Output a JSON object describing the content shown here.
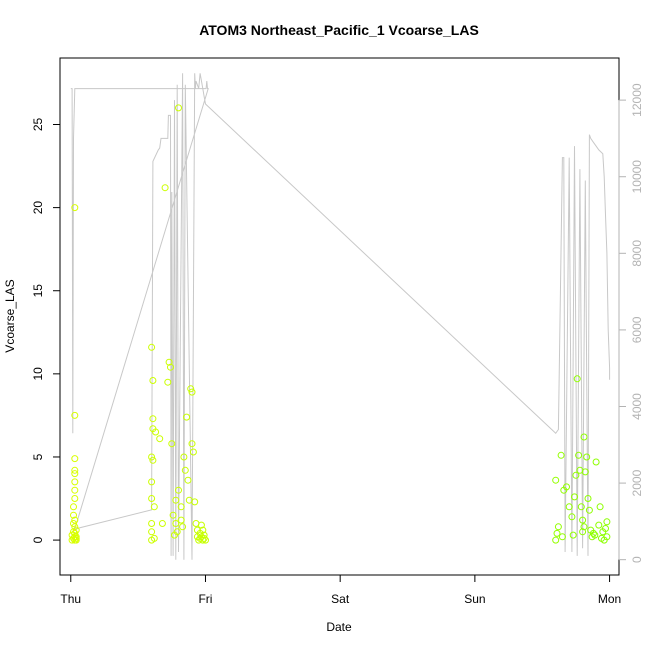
{
  "chart_data": {
    "type": "scatter",
    "title": "ATOM3 Northeast_Pacific_1 Vcoarse_LAS",
    "xlabel": "Date",
    "ylabel": "Vcoarse_LAS",
    "x_ticks": [
      "Thu",
      "Fri",
      "Sat",
      "Sun",
      "Mon"
    ],
    "xlim": [
      -0.08,
      4.07
    ],
    "ylim": [
      -2.1,
      29.0
    ],
    "y_ticks": [
      0,
      5,
      10,
      15,
      20,
      25
    ],
    "y2_ticks": [
      0,
      2000,
      4000,
      6000,
      8000,
      10000,
      12000
    ],
    "y2lim": [
      -400,
      13100
    ],
    "scatter_color_start": "#d9ff00",
    "scatter_color_end": "#8cff00",
    "line_color": "#c8c8c8",
    "grid": false,
    "legend": "none",
    "series": [
      {
        "kind": "points",
        "axis": "left",
        "x": [
          0.01,
          0.01,
          0.02,
          0.02,
          0.02,
          0.02,
          0.02,
          0.03,
          0.03,
          0.03,
          0.03,
          0.03,
          0.03,
          0.03,
          0.03,
          0.03,
          0.03,
          0.03,
          0.03,
          0.03,
          0.04,
          0.04,
          0.04,
          0.04,
          0.6,
          0.6,
          0.6,
          0.6,
          0.6,
          0.6,
          0.6,
          0.61,
          0.61,
          0.61,
          0.61,
          0.62,
          0.62,
          0.63,
          0.66,
          0.68,
          0.7,
          0.72,
          0.73,
          0.74,
          0.75,
          0.76,
          0.77,
          0.78,
          0.78,
          0.79,
          0.8,
          0.8,
          0.82,
          0.82,
          0.83,
          0.84,
          0.85,
          0.86,
          0.87,
          0.88,
          0.89,
          0.9,
          0.9,
          0.91,
          0.92,
          0.93,
          0.94,
          0.94,
          0.95,
          0.96,
          0.96,
          0.97,
          0.97,
          0.98,
          0.98,
          0.99,
          0.99,
          1.0,
          3.6,
          3.6,
          3.61,
          3.62,
          3.64,
          3.65,
          3.66,
          3.68,
          3.7,
          3.72,
          3.73,
          3.74,
          3.75,
          3.76,
          3.77,
          3.78,
          3.79,
          3.8,
          3.8,
          3.81,
          3.81,
          3.82,
          3.83,
          3.84,
          3.85,
          3.86,
          3.87,
          3.88,
          3.89,
          3.9,
          3.92,
          3.93,
          3.94,
          3.95,
          3.96,
          3.97,
          3.98,
          3.98
        ],
        "y": [
          0.0,
          0.3,
          0.1,
          0.5,
          1.0,
          1.5,
          2.0,
          2.5,
          3.0,
          3.5,
          4.0,
          4.2,
          4.9,
          0.8,
          0.2,
          20.0,
          7.5,
          1.2,
          0.4,
          0.0,
          0.1,
          0.6,
          0.2,
          0.0,
          0.0,
          0.5,
          1.0,
          2.5,
          3.5,
          5.0,
          11.6,
          9.6,
          7.3,
          6.7,
          4.8,
          2.0,
          0.1,
          6.5,
          6.1,
          1.0,
          21.2,
          9.5,
          10.7,
          10.4,
          5.8,
          1.5,
          0.3,
          2.4,
          1.0,
          0.5,
          26.0,
          3.0,
          2.0,
          1.2,
          0.8,
          5.0,
          4.2,
          7.4,
          3.6,
          2.4,
          9.1,
          8.9,
          5.8,
          5.3,
          2.3,
          1.0,
          0.6,
          0.2,
          0.0,
          0.4,
          0.1,
          0.9,
          0.2,
          0.0,
          0.6,
          0.3,
          0.1,
          0.0,
          0.0,
          3.6,
          0.4,
          0.8,
          5.1,
          0.2,
          3.0,
          3.2,
          2.0,
          1.4,
          0.3,
          2.6,
          3.9,
          9.7,
          5.1,
          4.2,
          2.0,
          1.2,
          0.5,
          6.2,
          0.8,
          4.1,
          5.0,
          2.5,
          1.8,
          0.6,
          0.2,
          0.4,
          0.3,
          4.7,
          0.9,
          2.0,
          0.1,
          0.5,
          0.0,
          0.7,
          0.2,
          1.1
        ]
      },
      {
        "kind": "line",
        "axis": "right",
        "x": [
          0.0,
          0.01,
          0.015,
          0.02,
          0.03,
          1.0,
          1.005,
          1.01,
          1.015,
          1.02,
          0.03,
          0.6,
          0.61,
          0.65,
          0.66,
          0.67,
          0.72,
          0.725,
          0.74,
          0.745,
          0.75,
          0.76,
          0.77,
          0.78,
          0.79,
          0.8,
          0.83,
          0.84,
          0.85,
          0.9,
          0.92,
          0.925,
          0.93,
          0.95,
          0.96,
          0.98,
          0.99,
          1.0,
          3.6,
          3.62,
          3.65,
          3.66,
          3.67,
          3.7,
          3.72,
          3.74,
          3.76,
          3.78,
          3.8,
          3.82,
          3.84,
          3.85,
          3.86,
          3.88,
          3.9,
          3.92,
          3.95,
          3.96,
          3.97,
          3.98,
          3.99,
          4.0,
          4.0
        ],
        "y": [
          12300,
          12300,
          3300,
          11000,
          12300,
          12300,
          12300,
          12500,
          12300,
          12300,
          800,
          1300,
          10400,
          10700,
          10750,
          11000,
          11000,
          11600,
          11600,
          100,
          9600,
          100,
          12000,
          0,
          12400,
          200,
          12700,
          0,
          12400,
          0,
          12700,
          12300,
          12500,
          12300,
          12700,
          12300,
          12100,
          11900,
          3300,
          3400,
          10500,
          10500,
          200,
          10500,
          200,
          10800,
          100,
          10200,
          300,
          9900,
          100,
          11100,
          11000,
          10900,
          10800,
          10700,
          10600,
          10000,
          9000,
          8000,
          6000,
          5000,
          4700
        ]
      }
    ]
  }
}
